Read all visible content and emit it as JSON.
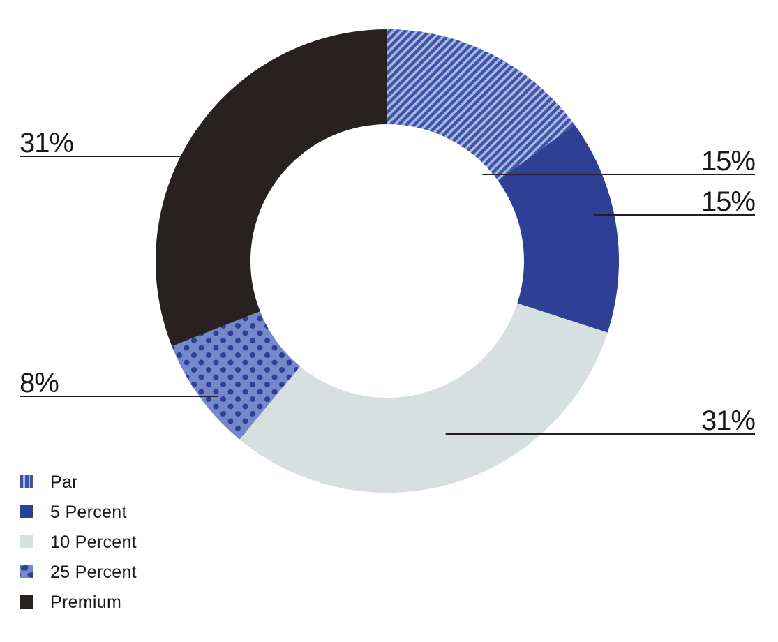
{
  "chart_data": {
    "type": "pie",
    "donut": true,
    "title": "",
    "categories": [
      "Par",
      "5 Percent",
      "10 Percent",
      "25 Percent",
      "Premium"
    ],
    "values": [
      15,
      15,
      31,
      8,
      31
    ],
    "data_labels": [
      "15%",
      "15%",
      "31%",
      "8%",
      "31%"
    ],
    "series_colors": [
      "#3f54a6",
      "#2e3f96",
      "#d6e0e1",
      "#6d81c6",
      "#272120"
    ],
    "series_patterns": [
      "diagonal-stripes",
      "solid",
      "solid",
      "dots",
      "solid"
    ],
    "legend": {
      "placement": "bottom-left",
      "entries": [
        "Par",
        "5 Percent",
        "10 Percent",
        "25 Percent",
        "Premium"
      ]
    },
    "start_angle": "12 o'clock",
    "direction": "clockwise"
  }
}
